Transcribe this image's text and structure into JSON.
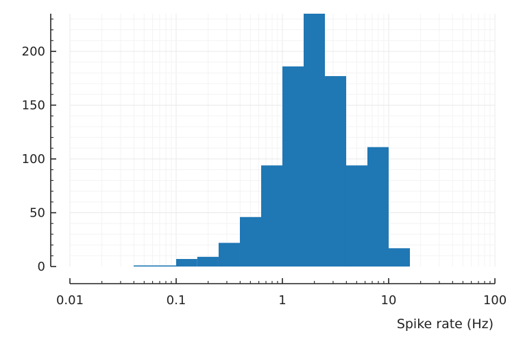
{
  "chart_data": {
    "type": "bar",
    "xlabel": "Spike rate (Hz)",
    "ylabel": "",
    "title": "",
    "x_scale": "log",
    "xlim": [
      0.01,
      100
    ],
    "ylim": [
      0,
      235
    ],
    "grid": true,
    "color": "#1f77b4",
    "x_ticks": [
      {
        "value": 0.01,
        "label": "0.01"
      },
      {
        "value": 0.1,
        "label": "0.1"
      },
      {
        "value": 1,
        "label": "1"
      },
      {
        "value": 10,
        "label": "10"
      },
      {
        "value": 100,
        "label": "100"
      }
    ],
    "y_ticks": [
      {
        "value": 0,
        "label": "0"
      },
      {
        "value": 50,
        "label": "50"
      },
      {
        "value": 100,
        "label": "100"
      },
      {
        "value": 150,
        "label": "150"
      },
      {
        "value": 200,
        "label": "200"
      }
    ],
    "bins": [
      {
        "x0": 0.0398,
        "x1": 0.0631,
        "count": 1
      },
      {
        "x0": 0.0631,
        "x1": 0.1,
        "count": 1
      },
      {
        "x0": 0.1,
        "x1": 0.158,
        "count": 7
      },
      {
        "x0": 0.158,
        "x1": 0.251,
        "count": 9
      },
      {
        "x0": 0.251,
        "x1": 0.398,
        "count": 22
      },
      {
        "x0": 0.398,
        "x1": 0.631,
        "count": 46
      },
      {
        "x0": 0.631,
        "x1": 1.0,
        "count": 94
      },
      {
        "x0": 1.0,
        "x1": 1.585,
        "count": 186
      },
      {
        "x0": 1.585,
        "x1": 2.512,
        "count": 235
      },
      {
        "x0": 2.512,
        "x1": 3.981,
        "count": 177
      },
      {
        "x0": 3.981,
        "x1": 6.31,
        "count": 94
      },
      {
        "x0": 6.31,
        "x1": 10.0,
        "count": 111
      },
      {
        "x0": 10.0,
        "x1": 15.85,
        "count": 17
      }
    ]
  }
}
